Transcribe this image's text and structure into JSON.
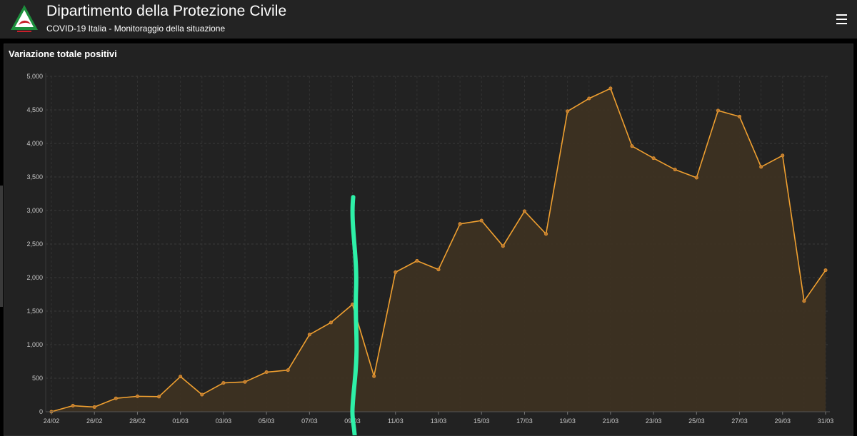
{
  "header": {
    "title": "Dipartimento della Protezione Civile",
    "subtitle": "COVID-19 Italia - Monitoraggio della situazione",
    "logo_icon": "protezione-civile-logo",
    "menu_icon": "hamburger-menu-icon"
  },
  "panel": {
    "title": "Variazione totale positivi"
  },
  "colors": {
    "line": "#f0a030",
    "area": "#3d3122",
    "annotation": "#2ef0a8",
    "header_bg": "#232323",
    "panel_bg": "#222222"
  },
  "chart_data": {
    "type": "area",
    "title": "Variazione totale positivi",
    "xlabel": "",
    "ylabel": "",
    "ylim": [
      0,
      5000
    ],
    "y_ticks": [
      0,
      500,
      1000,
      1500,
      2000,
      2500,
      3000,
      3500,
      4000,
      4500,
      5000
    ],
    "y_tick_labels": [
      "0",
      "500",
      "1,000",
      "1,500",
      "2,000",
      "2,500",
      "3,000",
      "3,500",
      "4,000",
      "4,500",
      "5,000"
    ],
    "x_tick_labels": [
      "24/02",
      "26/02",
      "28/02",
      "01/03",
      "03/03",
      "05/03",
      "07/03",
      "09/03",
      "11/03",
      "13/03",
      "15/03",
      "17/03",
      "19/03",
      "21/03",
      "23/03",
      "25/03",
      "27/03",
      "29/03",
      "31/03"
    ],
    "x": [
      "24/02",
      "25/02",
      "26/02",
      "27/02",
      "28/02",
      "29/02",
      "01/03",
      "02/03",
      "03/03",
      "04/03",
      "05/03",
      "06/03",
      "07/03",
      "08/03",
      "09/03",
      "10/03",
      "11/03",
      "12/03",
      "13/03",
      "14/03",
      "15/03",
      "16/03",
      "17/03",
      "18/03",
      "19/03",
      "20/03",
      "21/03",
      "22/03",
      "23/03",
      "24/03",
      "25/03",
      "26/03",
      "27/03",
      "28/03",
      "29/03",
      "30/03",
      "31/03"
    ],
    "values": [
      0,
      90,
      70,
      200,
      230,
      225,
      525,
      255,
      430,
      445,
      590,
      620,
      1150,
      1330,
      1600,
      530,
      2080,
      2250,
      2120,
      2800,
      2850,
      2470,
      2990,
      2650,
      4480,
      4670,
      4820,
      3960,
      3780,
      3610,
      3490,
      4490,
      4400,
      3650,
      3820,
      1650,
      2110
    ],
    "grid": true,
    "legend": "none",
    "annotation": {
      "type": "hand-drawn vertical line",
      "at_x": "09/03",
      "from_y": 3200,
      "color": "#2ef0a8"
    }
  }
}
